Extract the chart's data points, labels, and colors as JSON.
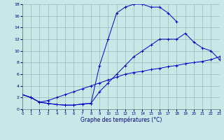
{
  "title": "Graphe des températures (°C)",
  "bg_color": "#c8e8e8",
  "grid_color": "#9ab8b8",
  "line_color": "#0000cc",
  "xlim": [
    0,
    23
  ],
  "ylim": [
    0,
    18
  ],
  "xticks": [
    0,
    1,
    2,
    3,
    4,
    5,
    6,
    7,
    8,
    9,
    10,
    11,
    12,
    13,
    14,
    15,
    16,
    17,
    18,
    19,
    20,
    21,
    22,
    23
  ],
  "yticks": [
    0,
    2,
    4,
    6,
    8,
    10,
    12,
    14,
    16,
    18
  ],
  "line1_x": [
    0,
    1,
    2,
    3,
    4,
    5,
    6,
    7,
    8,
    9,
    10,
    11,
    12,
    13,
    14,
    15,
    16,
    17,
    18
  ],
  "line1_y": [
    2.5,
    2.0,
    1.2,
    1.0,
    0.8,
    0.7,
    0.7,
    0.9,
    1.0,
    7.5,
    12.0,
    16.5,
    17.5,
    18.0,
    18.0,
    17.5,
    17.5,
    16.5,
    15.0
  ],
  "line2_x": [
    0,
    1,
    2,
    3,
    4,
    5,
    6,
    7,
    8,
    9,
    10,
    11,
    12,
    13,
    14,
    15,
    16,
    17,
    18,
    19,
    20,
    21,
    22,
    23
  ],
  "line2_y": [
    2.5,
    2.0,
    1.2,
    1.5,
    2.0,
    2.5,
    3.0,
    3.5,
    4.0,
    4.5,
    5.0,
    5.5,
    6.0,
    6.3,
    6.5,
    6.8,
    7.0,
    7.3,
    7.5,
    7.8,
    8.0,
    8.2,
    8.5,
    9.0
  ],
  "line3_x": [
    0,
    1,
    2,
    3,
    4,
    5,
    6,
    7,
    8,
    9,
    10,
    11,
    12,
    13,
    14,
    15,
    16,
    17,
    18,
    19,
    20,
    21,
    22,
    23
  ],
  "line3_y": [
    2.5,
    2.0,
    1.2,
    1.0,
    0.8,
    0.7,
    0.7,
    0.9,
    1.0,
    3.0,
    4.5,
    6.0,
    7.5,
    9.0,
    10.0,
    11.0,
    12.0,
    12.0,
    12.0,
    13.0,
    11.5,
    10.5,
    10.0,
    8.5
  ]
}
